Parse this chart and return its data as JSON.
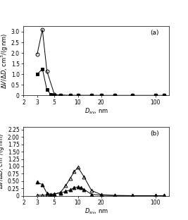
{
  "panel_a": {
    "label": "(a)",
    "series_open_circle": {
      "x": [
        3.0,
        3.5,
        4.0,
        5.0,
        6.0,
        8.0,
        10.0,
        15.0,
        20.0,
        30.0,
        50.0,
        100.0,
        130.0
      ],
      "y": [
        1.95,
        3.1,
        1.15,
        0.05,
        0.02,
        0.01,
        0.01,
        0.01,
        0.005,
        0.005,
        0.005,
        0.005,
        0.005
      ],
      "marker": "o",
      "fillstyle": "none",
      "color": "black",
      "markersize": 3.5
    },
    "series_filled_square": {
      "x": [
        3.0,
        3.5,
        4.0,
        4.5,
        5.0,
        6.0,
        8.0,
        10.0,
        15.0,
        20.0,
        30.0,
        50.0,
        100.0,
        130.0
      ],
      "y": [
        1.0,
        1.25,
        0.28,
        0.05,
        0.02,
        0.01,
        0.005,
        0.005,
        0.005,
        0.005,
        0.005,
        0.005,
        0.005,
        0.005
      ],
      "marker": "s",
      "fillstyle": "full",
      "color": "black",
      "markersize": 3.5
    },
    "ylim": [
      0,
      3.25
    ],
    "yticks": [
      0,
      0.5,
      1.0,
      1.5,
      2.0,
      2.5,
      3.0
    ],
    "ytick_labels": [
      "0",
      "0.5",
      "1.0",
      "1.5",
      "2.0",
      "2.5",
      "3.0"
    ],
    "xticks": [
      2,
      3,
      5,
      10,
      20,
      100
    ],
    "xtick_labels": [
      "2",
      "3",
      "5",
      "10",
      "20",
      "100"
    ],
    "xlabel": "$D_{\\mathrm{av}}$, nm",
    "xlim": [
      2,
      150
    ]
  },
  "panel_b": {
    "label": "(b)",
    "series_open_triangle": {
      "x": [
        3.0,
        3.5,
        4.0,
        4.5,
        5.0,
        6.0,
        7.0,
        8.0,
        9.0,
        10.0,
        12.0,
        15.0,
        20.0,
        30.0,
        50.0,
        100.0,
        130.0
      ],
      "y": [
        0.02,
        0.02,
        0.02,
        0.03,
        0.05,
        0.12,
        0.35,
        0.6,
        0.82,
        0.97,
        0.65,
        0.18,
        0.04,
        0.01,
        0.005,
        0.005,
        0.005
      ],
      "marker": "^",
      "fillstyle": "none",
      "color": "black",
      "markersize": 3.5
    },
    "series_filled_triangle": {
      "x": [
        3.0,
        3.5,
        4.0,
        4.5,
        5.0,
        6.0,
        7.0,
        8.0,
        9.0,
        10.0,
        11.0,
        12.0,
        15.0,
        20.0,
        30.0,
        50.0,
        100.0,
        130.0
      ],
      "y": [
        0.46,
        0.38,
        0.09,
        0.05,
        0.07,
        0.1,
        0.15,
        0.2,
        0.28,
        0.3,
        0.27,
        0.22,
        0.05,
        0.02,
        0.01,
        0.005,
        0.005,
        0.005
      ],
      "marker": "^",
      "fillstyle": "full",
      "color": "black",
      "markersize": 3.5
    },
    "ylim": [
      0,
      2.35
    ],
    "yticks": [
      0,
      0.25,
      0.5,
      0.75,
      1.0,
      1.25,
      1.5,
      1.75,
      2.0,
      2.25
    ],
    "ytick_labels": [
      "0",
      "0.25",
      "0.50",
      "0.75",
      "1.00",
      "1.25",
      "1.50",
      "1.75",
      "2.00",
      "2.25"
    ],
    "xticks": [
      2,
      3,
      5,
      10,
      20,
      100
    ],
    "xtick_labels": [
      "2",
      "3",
      "5",
      "10",
      "20",
      "100"
    ],
    "xlabel": "$D_{\\mathrm{av}}$, nm",
    "xlim": [
      2,
      150
    ]
  },
  "ylabel": "ΔV/ΔD, cm³/(g·nm)",
  "linewidth": 0.7,
  "tick_fontsize": 5.5,
  "label_fontsize": 6.0,
  "annot_fontsize": 6.5
}
